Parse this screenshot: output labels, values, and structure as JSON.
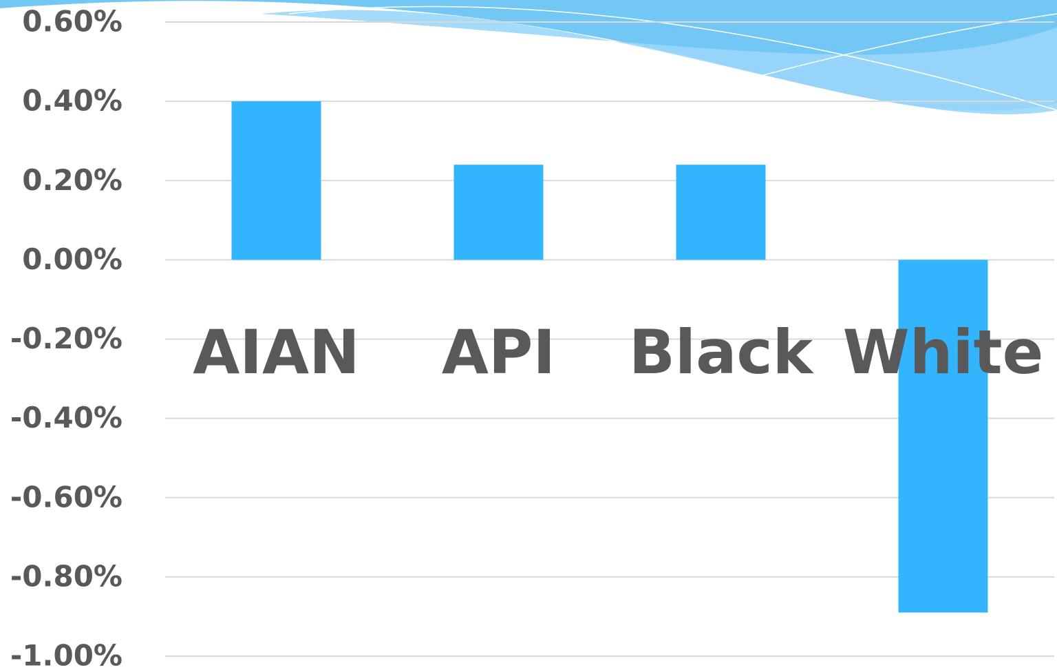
{
  "chart_data": {
    "type": "bar",
    "categories": [
      "AIAN",
      "API",
      "Black",
      "White"
    ],
    "values": [
      0.4,
      0.24,
      0.24,
      -0.89
    ],
    "color": "#33b5fe",
    "ylim": [
      -1,
      0.6
    ],
    "yticks": [
      {
        "value": -1,
        "label": "-1.00%"
      },
      {
        "value": -0.8,
        "label": "-0.80%"
      },
      {
        "value": -0.6,
        "label": "-0.60%"
      },
      {
        "value": -0.4,
        "label": "-0.40%"
      },
      {
        "value": -0.2,
        "label": "-0.20%"
      },
      {
        "value": 0,
        "label": "0.00%"
      },
      {
        "value": 0.2,
        "label": "0.20%"
      },
      {
        "value": 0.4,
        "label": "0.40%"
      },
      {
        "value": 0.6,
        "label": "0.60%"
      }
    ],
    "grid": true
  }
}
